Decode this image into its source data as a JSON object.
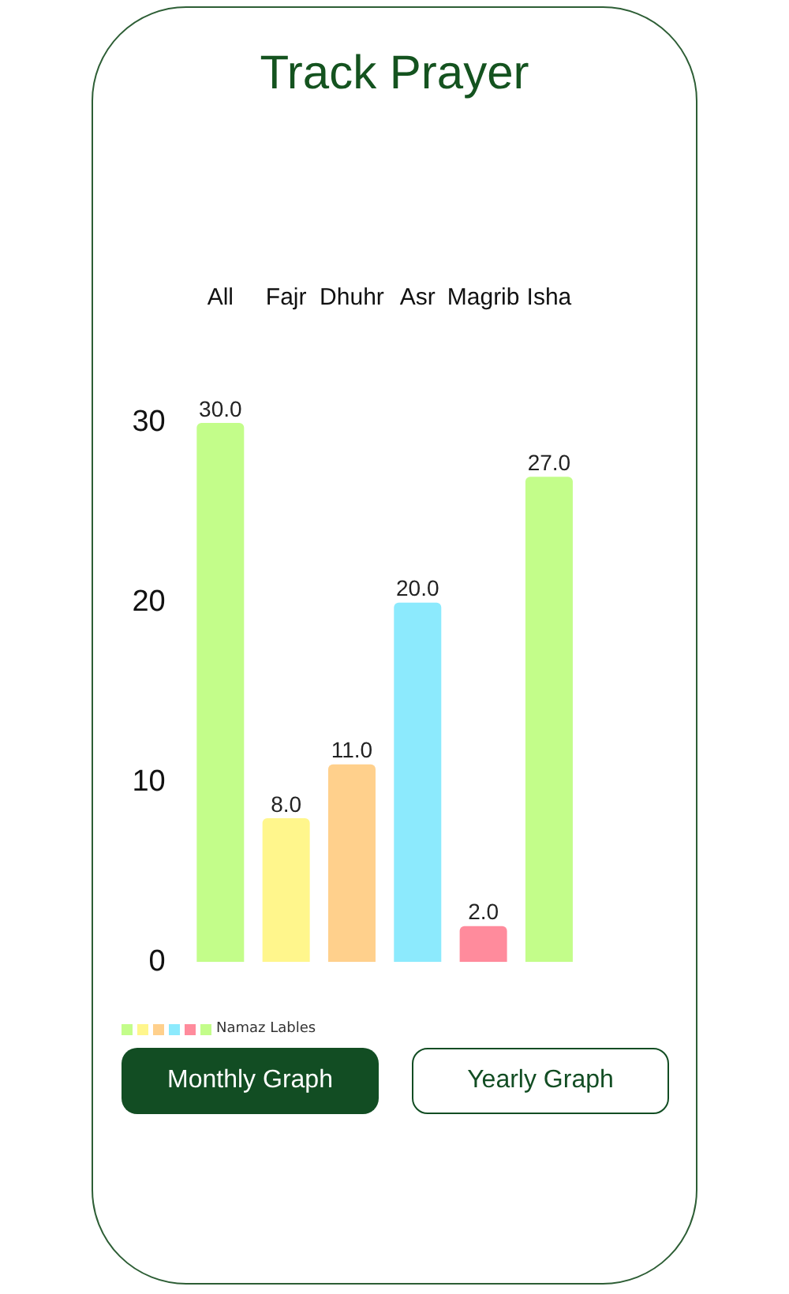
{
  "chart_data": {
    "type": "bar",
    "title": "Track Prayer",
    "categories": [
      "All",
      "Fajr",
      "Dhuhr",
      "Asr",
      "Magrib",
      "Isha"
    ],
    "series": [
      {
        "name": "Namaz Lables",
        "values": [
          30,
          8,
          11,
          20,
          2,
          27
        ],
        "colors": [
          "#c3fd8a",
          "#fff68c",
          "#ffd08c",
          "#8ceafd",
          "#ff8b9c",
          "#c3fd8a"
        ],
        "value_labels": [
          "30.0",
          "8.0",
          "11.0",
          "20.0",
          "2.0",
          "27.0"
        ]
      }
    ],
    "ylim": [
      0,
      30
    ],
    "yticks": [
      0,
      10,
      20,
      30
    ],
    "grid": false,
    "legend": "bottom left",
    "annotations": [
      "Monthly Graph",
      "Yearly Graph"
    ]
  }
}
